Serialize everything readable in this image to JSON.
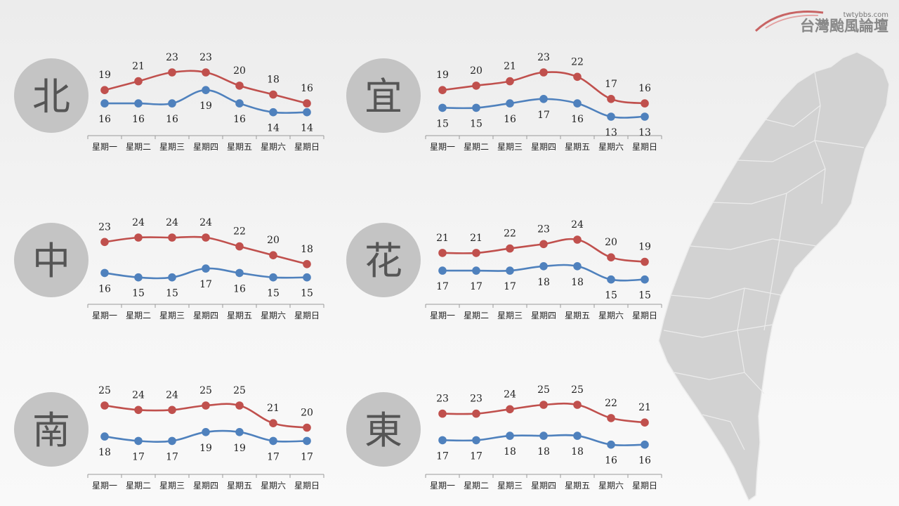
{
  "logo": {
    "url": "twtybbs.com",
    "name": "台灣颱風論壇"
  },
  "colors": {
    "high": "#c0504d",
    "low": "#4f81bd",
    "circle": "#c4c4c4",
    "map": "#d2d2d2"
  },
  "chart_data": [
    {
      "type": "line",
      "region": "北",
      "categories": [
        "星期一",
        "星期二",
        "星期三",
        "星期四",
        "星期五",
        "星期六",
        "星期日"
      ],
      "series": [
        {
          "values": [
            19,
            21,
            23,
            23,
            20,
            18,
            16
          ]
        },
        {
          "values": [
            16,
            16,
            16,
            19,
            16,
            14,
            14
          ]
        }
      ]
    },
    {
      "type": "line",
      "region": "宜",
      "categories": [
        "星期一",
        "星期二",
        "星期三",
        "星期四",
        "星期五",
        "星期六",
        "星期日"
      ],
      "series": [
        {
          "values": [
            19,
            20,
            21,
            23,
            22,
            17,
            16
          ]
        },
        {
          "values": [
            15,
            15,
            16,
            17,
            16,
            13,
            13
          ]
        }
      ]
    },
    {
      "type": "line",
      "region": "中",
      "categories": [
        "星期一",
        "星期二",
        "星期三",
        "星期四",
        "星期五",
        "星期六",
        "星期日"
      ],
      "series": [
        {
          "values": [
            23,
            24,
            24,
            24,
            22,
            20,
            18
          ]
        },
        {
          "values": [
            16,
            15,
            15,
            17,
            16,
            15,
            15
          ]
        }
      ]
    },
    {
      "type": "line",
      "region": "花",
      "categories": [
        "星期一",
        "星期二",
        "星期三",
        "星期四",
        "星期五",
        "星期六",
        "星期日"
      ],
      "series": [
        {
          "values": [
            21,
            21,
            22,
            23,
            24,
            20,
            19
          ]
        },
        {
          "values": [
            17,
            17,
            17,
            18,
            18,
            15,
            15
          ]
        }
      ]
    },
    {
      "type": "line",
      "region": "南",
      "categories": [
        "星期一",
        "星期二",
        "星期三",
        "星期四",
        "星期五",
        "星期六",
        "星期日"
      ],
      "series": [
        {
          "values": [
            25,
            24,
            24,
            25,
            25,
            21,
            20
          ]
        },
        {
          "values": [
            18,
            17,
            17,
            19,
            19,
            17,
            17
          ]
        }
      ]
    },
    {
      "type": "line",
      "region": "東",
      "categories": [
        "星期一",
        "星期二",
        "星期三",
        "星期四",
        "星期五",
        "星期六",
        "星期日"
      ],
      "series": [
        {
          "values": [
            23,
            23,
            24,
            25,
            25,
            22,
            21
          ]
        },
        {
          "values": [
            17,
            17,
            18,
            18,
            18,
            16,
            16
          ]
        }
      ]
    }
  ]
}
